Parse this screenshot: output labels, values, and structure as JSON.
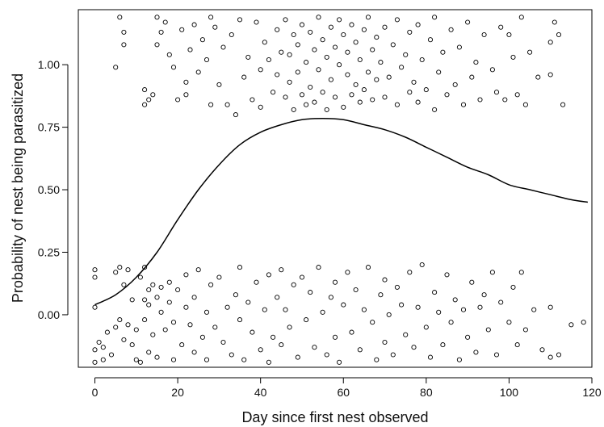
{
  "chart_data": {
    "type": "scatter",
    "title": "",
    "xlabel": "Day since first nest observed",
    "ylabel": "Probability of nest being parasitized",
    "xlim": [
      -4,
      120
    ],
    "ylim": [
      -0.21,
      1.22
    ],
    "x_ticks": [
      0,
      20,
      40,
      60,
      80,
      100,
      120
    ],
    "y_ticks": [
      0.0,
      0.25,
      0.5,
      0.75,
      1.0
    ],
    "x_tick_labels": [
      "0",
      "20",
      "40",
      "60",
      "80",
      "100",
      "120"
    ],
    "y_tick_labels": [
      "0.00",
      "0.25",
      "0.50",
      "0.75",
      "1.00"
    ],
    "grid": false,
    "legend": "none",
    "colors": {
      "points": "#000000",
      "curve": "#000000",
      "axes": "#000000"
    },
    "series": [
      {
        "type": "scatter",
        "marker": "open-circle",
        "points": [
          [
            0,
            0.18
          ],
          [
            0,
            0.15
          ],
          [
            0,
            0.03
          ],
          [
            0,
            -0.14
          ],
          [
            0,
            -0.19
          ],
          [
            1,
            -0.11
          ],
          [
            2,
            -0.18
          ],
          [
            2,
            -0.13
          ],
          [
            3,
            -0.07
          ],
          [
            4,
            -0.16
          ],
          [
            5,
            -0.05
          ],
          [
            5,
            0.17
          ],
          [
            6,
            -0.02
          ],
          [
            6,
            0.19
          ],
          [
            7,
            0.12
          ],
          [
            7,
            -0.1
          ],
          [
            8,
            0.18
          ],
          [
            8,
            -0.04
          ],
          [
            9,
            -0.12
          ],
          [
            9,
            0.06
          ],
          [
            10,
            -0.18
          ],
          [
            10,
            -0.06
          ],
          [
            11,
            0.15
          ],
          [
            11,
            -0.19
          ],
          [
            12,
            0.19
          ],
          [
            12,
            0.06
          ],
          [
            12,
            -0.02
          ],
          [
            13,
            0.04
          ],
          [
            13,
            -0.15
          ],
          [
            13,
            0.1
          ],
          [
            14,
            0.12
          ],
          [
            14,
            -0.08
          ],
          [
            15,
            0.07
          ],
          [
            15,
            -0.17
          ],
          [
            16,
            0.01
          ],
          [
            16,
            0.11
          ],
          [
            17,
            -0.06
          ],
          [
            18,
            0.13
          ],
          [
            18,
            0.05
          ],
          [
            19,
            -0.18
          ],
          [
            19,
            -0.03
          ],
          [
            20,
            0.1
          ],
          [
            21,
            -0.12
          ],
          [
            22,
            0.16
          ],
          [
            22,
            0.03
          ],
          [
            23,
            -0.04
          ],
          [
            24,
            0.07
          ],
          [
            24,
            -0.15
          ],
          [
            25,
            0.18
          ],
          [
            26,
            -0.09
          ],
          [
            27,
            0.01
          ],
          [
            27,
            -0.18
          ],
          [
            28,
            0.12
          ],
          [
            29,
            -0.05
          ],
          [
            30,
            0.15
          ],
          [
            31,
            -0.11
          ],
          [
            32,
            0.03
          ],
          [
            33,
            -0.16
          ],
          [
            34,
            0.08
          ],
          [
            35,
            0.19
          ],
          [
            35,
            -0.02
          ],
          [
            36,
            -0.18
          ],
          [
            37,
            0.05
          ],
          [
            38,
            -0.07
          ],
          [
            39,
            0.13
          ],
          [
            40,
            -0.14
          ],
          [
            41,
            0.02
          ],
          [
            42,
            0.16
          ],
          [
            42,
            -0.19
          ],
          [
            43,
            -0.09
          ],
          [
            44,
            0.07
          ],
          [
            45,
            0.18
          ],
          [
            45,
            -0.12
          ],
          [
            46,
            0.02
          ],
          [
            47,
            -0.05
          ],
          [
            48,
            0.12
          ],
          [
            49,
            -0.17
          ],
          [
            50,
            0.15
          ],
          [
            51,
            -0.02
          ],
          [
            52,
            0.09
          ],
          [
            53,
            -0.13
          ],
          [
            54,
            0.19
          ],
          [
            55,
            0.01
          ],
          [
            56,
            -0.16
          ],
          [
            57,
            0.07
          ],
          [
            58,
            0.13
          ],
          [
            58,
            -0.09
          ],
          [
            59,
            -0.19
          ],
          [
            60,
            0.04
          ],
          [
            61,
            0.17
          ],
          [
            62,
            -0.07
          ],
          [
            63,
            0.1
          ],
          [
            64,
            -0.14
          ],
          [
            65,
            0.02
          ],
          [
            66,
            0.19
          ],
          [
            67,
            -0.03
          ],
          [
            68,
            -0.18
          ],
          [
            69,
            0.08
          ],
          [
            70,
            0.14
          ],
          [
            70,
            -0.11
          ],
          [
            71,
            0.0
          ],
          [
            72,
            -0.16
          ],
          [
            73,
            0.11
          ],
          [
            74,
            0.04
          ],
          [
            75,
            -0.08
          ],
          [
            76,
            0.17
          ],
          [
            77,
            -0.13
          ],
          [
            78,
            0.03
          ],
          [
            79,
            0.2
          ],
          [
            80,
            -0.05
          ],
          [
            81,
            -0.17
          ],
          [
            82,
            0.09
          ],
          [
            83,
            0.01
          ],
          [
            84,
            -0.12
          ],
          [
            85,
            0.16
          ],
          [
            86,
            -0.03
          ],
          [
            87,
            0.06
          ],
          [
            88,
            -0.18
          ],
          [
            89,
            0.02
          ],
          [
            90,
            -0.09
          ],
          [
            91,
            0.13
          ],
          [
            92,
            -0.15
          ],
          [
            93,
            0.03
          ],
          [
            94,
            0.08
          ],
          [
            95,
            -0.06
          ],
          [
            96,
            0.17
          ],
          [
            97,
            -0.16
          ],
          [
            98,
            0.05
          ],
          [
            100,
            -0.03
          ],
          [
            101,
            0.11
          ],
          [
            102,
            -0.12
          ],
          [
            103,
            0.17
          ],
          [
            104,
            -0.06
          ],
          [
            106,
            0.02
          ],
          [
            108,
            -0.14
          ],
          [
            110,
            -0.17
          ],
          [
            110,
            0.03
          ],
          [
            112,
            -0.16
          ],
          [
            115,
            -0.04
          ],
          [
            118,
            -0.03
          ],
          [
            5,
            0.99
          ],
          [
            6,
            1.19
          ],
          [
            7,
            1.13
          ],
          [
            7,
            1.08
          ],
          [
            12,
            0.9
          ],
          [
            12,
            0.84
          ],
          [
            13,
            0.86
          ],
          [
            14,
            0.88
          ],
          [
            15,
            1.19
          ],
          [
            15,
            1.08
          ],
          [
            16,
            1.13
          ],
          [
            17,
            1.17
          ],
          [
            18,
            1.04
          ],
          [
            19,
            0.99
          ],
          [
            20,
            0.86
          ],
          [
            21,
            1.14
          ],
          [
            22,
            0.93
          ],
          [
            22,
            0.88
          ],
          [
            23,
            1.06
          ],
          [
            24,
            1.16
          ],
          [
            25,
            0.97
          ],
          [
            26,
            1.1
          ],
          [
            27,
            1.02
          ],
          [
            28,
            0.84
          ],
          [
            28,
            1.19
          ],
          [
            29,
            1.15
          ],
          [
            30,
            0.92
          ],
          [
            31,
            1.07
          ],
          [
            32,
            0.84
          ],
          [
            33,
            1.12
          ],
          [
            34,
            0.8
          ],
          [
            35,
            1.18
          ],
          [
            36,
            0.95
          ],
          [
            37,
            1.03
          ],
          [
            38,
            0.86
          ],
          [
            39,
            1.17
          ],
          [
            40,
            0.98
          ],
          [
            40,
            0.83
          ],
          [
            41,
            1.09
          ],
          [
            42,
            1.02
          ],
          [
            43,
            0.89
          ],
          [
            44,
            1.14
          ],
          [
            44,
            0.96
          ],
          [
            45,
            1.05
          ],
          [
            46,
            0.87
          ],
          [
            46,
            1.18
          ],
          [
            47,
            0.93
          ],
          [
            47,
            1.04
          ],
          [
            48,
            0.82
          ],
          [
            48,
            1.12
          ],
          [
            49,
            0.97
          ],
          [
            49,
            1.08
          ],
          [
            50,
            0.88
          ],
          [
            50,
            1.16
          ],
          [
            51,
            1.01
          ],
          [
            51,
            0.84
          ],
          [
            52,
            1.13
          ],
          [
            52,
            0.91
          ],
          [
            53,
            1.06
          ],
          [
            53,
            0.85
          ],
          [
            54,
            1.19
          ],
          [
            54,
            0.98
          ],
          [
            55,
            0.89
          ],
          [
            55,
            1.1
          ],
          [
            56,
            1.03
          ],
          [
            56,
            0.82
          ],
          [
            57,
            1.15
          ],
          [
            57,
            0.94
          ],
          [
            58,
            1.07
          ],
          [
            58,
            0.87
          ],
          [
            59,
            1.18
          ],
          [
            59,
            1.0
          ],
          [
            60,
            0.83
          ],
          [
            60,
            1.12
          ],
          [
            61,
            0.96
          ],
          [
            61,
            1.05
          ],
          [
            62,
            0.88
          ],
          [
            62,
            1.16
          ],
          [
            63,
            0.92
          ],
          [
            63,
            1.09
          ],
          [
            64,
            0.85
          ],
          [
            64,
            1.02
          ],
          [
            65,
            1.14
          ],
          [
            65,
            0.9
          ],
          [
            66,
            0.97
          ],
          [
            66,
            1.19
          ],
          [
            67,
            0.86
          ],
          [
            67,
            1.06
          ],
          [
            68,
            1.11
          ],
          [
            68,
            0.94
          ],
          [
            69,
            1.01
          ],
          [
            70,
            0.87
          ],
          [
            70,
            1.15
          ],
          [
            71,
            0.95
          ],
          [
            72,
            1.08
          ],
          [
            73,
            0.84
          ],
          [
            73,
            1.18
          ],
          [
            74,
            0.99
          ],
          [
            75,
            1.04
          ],
          [
            76,
            0.89
          ],
          [
            76,
            1.13
          ],
          [
            77,
            0.93
          ],
          [
            78,
            1.16
          ],
          [
            78,
            0.85
          ],
          [
            79,
            1.02
          ],
          [
            80,
            0.9
          ],
          [
            81,
            1.1
          ],
          [
            82,
            0.82
          ],
          [
            82,
            1.19
          ],
          [
            83,
            0.97
          ],
          [
            84,
            1.05
          ],
          [
            85,
            0.88
          ],
          [
            86,
            1.14
          ],
          [
            87,
            0.92
          ],
          [
            88,
            1.07
          ],
          [
            89,
            0.84
          ],
          [
            90,
            1.17
          ],
          [
            91,
            0.95
          ],
          [
            92,
            1.01
          ],
          [
            93,
            0.86
          ],
          [
            94,
            1.12
          ],
          [
            96,
            0.98
          ],
          [
            97,
            0.89
          ],
          [
            98,
            1.15
          ],
          [
            99,
            0.86
          ],
          [
            100,
            1.12
          ],
          [
            101,
            1.03
          ],
          [
            102,
            0.88
          ],
          [
            103,
            1.19
          ],
          [
            104,
            0.84
          ],
          [
            105,
            1.05
          ],
          [
            107,
            0.95
          ],
          [
            110,
            1.09
          ],
          [
            110,
            0.96
          ],
          [
            111,
            1.17
          ],
          [
            112,
            1.12
          ],
          [
            113,
            0.84
          ]
        ]
      },
      {
        "type": "line",
        "style": "solid",
        "x": [
          0,
          5,
          10,
          15,
          20,
          25,
          30,
          35,
          40,
          45,
          50,
          55,
          60,
          65,
          70,
          75,
          80,
          85,
          90,
          95,
          100,
          105,
          110,
          115,
          119
        ],
        "y": [
          0.04,
          0.08,
          0.15,
          0.25,
          0.38,
          0.5,
          0.6,
          0.68,
          0.73,
          0.76,
          0.78,
          0.785,
          0.78,
          0.76,
          0.74,
          0.71,
          0.67,
          0.63,
          0.59,
          0.56,
          0.52,
          0.5,
          0.48,
          0.46,
          0.45
        ]
      }
    ]
  }
}
